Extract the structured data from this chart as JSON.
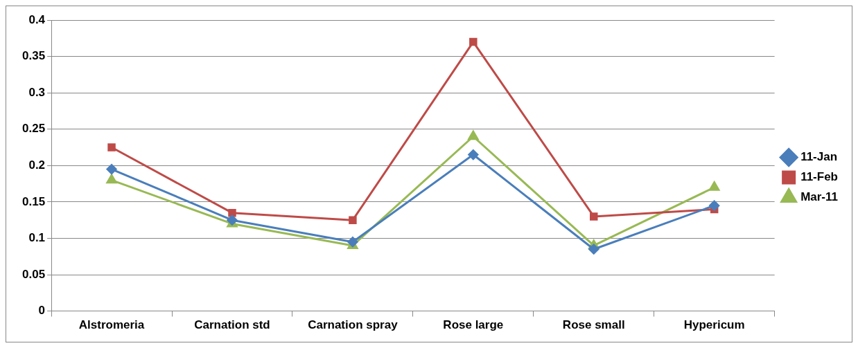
{
  "chart_data": {
    "type": "line",
    "categories": [
      "Alstromeria",
      "Carnation std",
      "Carnation spray",
      "Rose large",
      "Rose small",
      "Hypericum"
    ],
    "series": [
      {
        "name": "11-Jan",
        "color": "#4a7ebb",
        "marker": "diamond",
        "values": [
          0.195,
          0.125,
          0.095,
          0.215,
          0.085,
          0.145
        ]
      },
      {
        "name": "11-Feb",
        "color": "#be4b48",
        "marker": "square",
        "values": [
          0.225,
          0.135,
          0.125,
          0.37,
          0.13,
          0.14
        ]
      },
      {
        "name": "Mar-11",
        "color": "#98b954",
        "marker": "triangle",
        "values": [
          0.18,
          0.12,
          0.09,
          0.24,
          0.09,
          0.17
        ]
      }
    ],
    "ylim": [
      0,
      0.4
    ],
    "yticks": [
      0,
      0.05,
      0.1,
      0.15,
      0.2,
      0.25,
      0.3,
      0.35,
      0.4
    ],
    "grid": "y",
    "legend": "right",
    "line_style": "solid"
  }
}
